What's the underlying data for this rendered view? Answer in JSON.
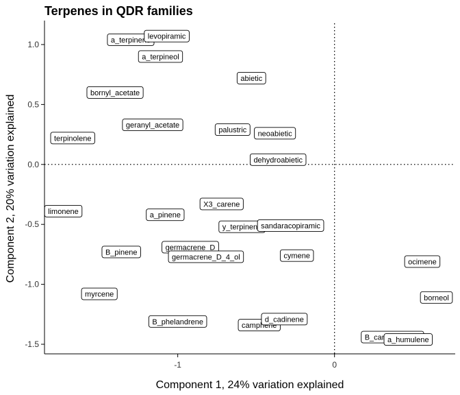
{
  "chart_data": {
    "type": "scatter",
    "title": "Terpenes in QDR families",
    "xlabel": "Component 1, 24% variation explained",
    "ylabel": "Component 2, 20% variation explained",
    "xlim": [
      -1.85,
      0.77
    ],
    "ylim": [
      -1.58,
      1.2
    ],
    "xticks": [
      -1,
      0
    ],
    "yticks": [
      1.0,
      0.5,
      0.0,
      -0.5,
      -1.0,
      -1.5
    ],
    "xtick_labels": [
      "-1",
      "0"
    ],
    "ytick_labels": [
      "1.0",
      "0.5",
      "0.0",
      "-0.5",
      "-1.0",
      "-1.5"
    ],
    "reference_lines": {
      "x": 0,
      "y": 0
    },
    "grid": false,
    "points": [
      {
        "label": "a_terpinene",
        "x": -1.3,
        "y": 1.04
      },
      {
        "label": "levopiramic",
        "x": -1.07,
        "y": 1.07
      },
      {
        "label": "a_terpineol",
        "x": -1.11,
        "y": 0.9
      },
      {
        "label": "abietic",
        "x": -0.53,
        "y": 0.72
      },
      {
        "label": "bornyl_acetate",
        "x": -1.4,
        "y": 0.6
      },
      {
        "label": "geranyl_acetate",
        "x": -1.16,
        "y": 0.33
      },
      {
        "label": "palustric",
        "x": -0.65,
        "y": 0.29
      },
      {
        "label": "neoabietic",
        "x": -0.38,
        "y": 0.26
      },
      {
        "label": "terpinolene",
        "x": -1.67,
        "y": 0.22
      },
      {
        "label": "dehydroabietic",
        "x": -0.36,
        "y": 0.04
      },
      {
        "label": "limonene",
        "x": -1.73,
        "y": -0.39
      },
      {
        "label": "X3_carene",
        "x": -0.72,
        "y": -0.33
      },
      {
        "label": "a_pinene",
        "x": -1.08,
        "y": -0.42
      },
      {
        "label": "y_terpinene",
        "x": -0.59,
        "y": -0.52
      },
      {
        "label": "sandaracopiramic",
        "x": -0.28,
        "y": -0.51
      },
      {
        "label": "B_pinene",
        "x": -1.36,
        "y": -0.73
      },
      {
        "label": "germacrene_D",
        "x": -0.92,
        "y": -0.69
      },
      {
        "label": "germacrene_D_4_ol",
        "x": -0.82,
        "y": -0.77
      },
      {
        "label": "cymene",
        "x": -0.24,
        "y": -0.76
      },
      {
        "label": "ocimene",
        "x": 0.56,
        "y": -0.81
      },
      {
        "label": "myrcene",
        "x": -1.5,
        "y": -1.08
      },
      {
        "label": "borneol",
        "x": 0.65,
        "y": -1.11
      },
      {
        "label": "B_phelandrene",
        "x": -1.0,
        "y": -1.31
      },
      {
        "label": "camphene",
        "x": -0.48,
        "y": -1.34
      },
      {
        "label": "d_cadinene",
        "x": -0.32,
        "y": -1.29
      },
      {
        "label": "B_caryophyllene",
        "x": 0.37,
        "y": -1.44
      },
      {
        "label": "a_humulene",
        "x": 0.47,
        "y": -1.46
      }
    ]
  }
}
